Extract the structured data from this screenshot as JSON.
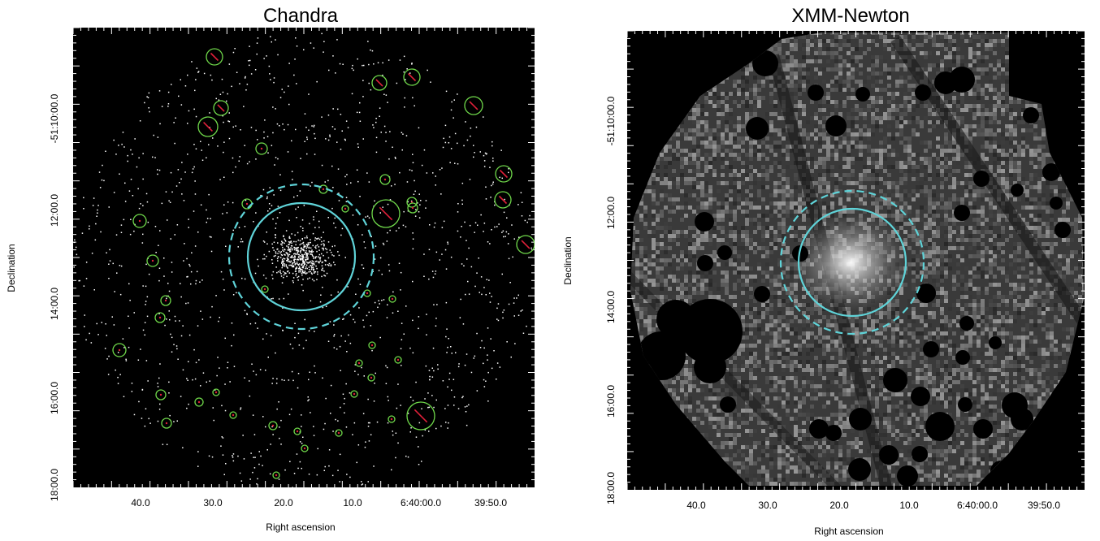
{
  "panels": [
    {
      "title": "Chandra",
      "xlabel": "Right ascension",
      "ylabel": "Declination",
      "yticks": [
        "-51:10:00.0",
        "12:00.0",
        "14:00.0",
        "16:00.0",
        "18:00.0"
      ],
      "xticks": [
        "40.0",
        "30.0",
        "20.0",
        "10.0",
        "6:40:00.0",
        "39:50.0"
      ]
    },
    {
      "title": "XMM-Newton",
      "xlabel": "Right ascension",
      "ylabel": "Declination",
      "yticks": [
        "-51:10:00.0",
        "12:00.0",
        "14:00.0",
        "16:00.0",
        "18:00.0"
      ],
      "xticks": [
        "40.0",
        "30.0",
        "20.0",
        "10.0",
        "6:40:00.0",
        "39:50.0"
      ]
    }
  ],
  "colors": {
    "aperture": "#5fd3d8",
    "source_region": "#6fd84a",
    "exclusion": "#e0203a"
  }
}
